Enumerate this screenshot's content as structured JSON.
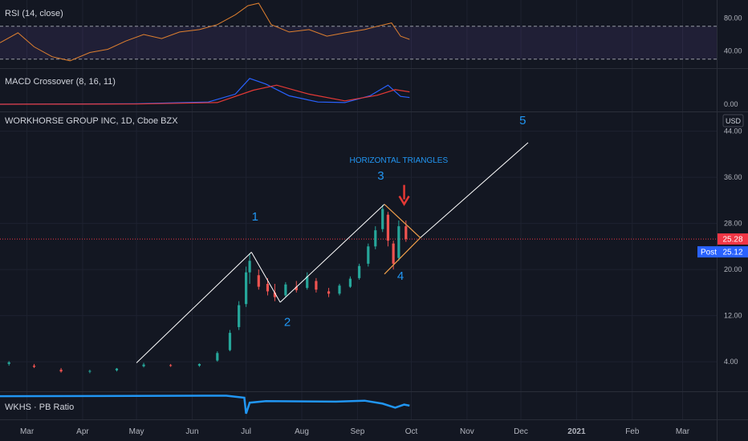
{
  "chart_data": {
    "type": "candlestick",
    "colors": {
      "background": "#131722",
      "grid": "#1e2230",
      "up": "#26a69a",
      "down": "#ef5350",
      "rsi_line": "#e0802f",
      "rsi_band": "#7e57c2",
      "macd_line": "#2962ff",
      "signal_line": "#e53935",
      "pb_line": "#2196f3",
      "wave_line": "#ffffff",
      "triangle": "#f0a04b",
      "wave_label": "#2196f3",
      "last_price": "#f23645",
      "post_price": "#2962ff",
      "arrow": "#e53935"
    },
    "x_axis": {
      "months": [
        "Mar",
        "Apr",
        "May",
        "Jun",
        "Jul",
        "Aug",
        "Sep",
        "Oct",
        "Nov",
        "Dec",
        "2021",
        "Feb",
        "Mar"
      ],
      "range": [
        "2020-02-15",
        "2021-03-20"
      ]
    },
    "rsi_panel": {
      "title": "RSI (14, close)",
      "ticks": [
        "80.00",
        "40.00"
      ],
      "ylim": [
        20,
        100
      ],
      "upper_band": 70,
      "lower_band": 30,
      "series": [
        {
          "date": "2020-02-15",
          "value": 50
        },
        {
          "date": "2020-02-25",
          "value": 62
        },
        {
          "date": "2020-03-05",
          "value": 45
        },
        {
          "date": "2020-03-15",
          "value": 33
        },
        {
          "date": "2020-03-25",
          "value": 28
        },
        {
          "date": "2020-04-05",
          "value": 38
        },
        {
          "date": "2020-04-15",
          "value": 42
        },
        {
          "date": "2020-04-25",
          "value": 52
        },
        {
          "date": "2020-05-05",
          "value": 60
        },
        {
          "date": "2020-05-15",
          "value": 55
        },
        {
          "date": "2020-05-25",
          "value": 63
        },
        {
          "date": "2020-06-05",
          "value": 66
        },
        {
          "date": "2020-06-15",
          "value": 72
        },
        {
          "date": "2020-06-25",
          "value": 84
        },
        {
          "date": "2020-07-02",
          "value": 95
        },
        {
          "date": "2020-07-08",
          "value": 98
        },
        {
          "date": "2020-07-15",
          "value": 72
        },
        {
          "date": "2020-07-25",
          "value": 63
        },
        {
          "date": "2020-08-05",
          "value": 66
        },
        {
          "date": "2020-08-15",
          "value": 58
        },
        {
          "date": "2020-08-25",
          "value": 62
        },
        {
          "date": "2020-09-05",
          "value": 66
        },
        {
          "date": "2020-09-12",
          "value": 70
        },
        {
          "date": "2020-09-20",
          "value": 74
        },
        {
          "date": "2020-09-25",
          "value": 58
        },
        {
          "date": "2020-09-30",
          "value": 54
        }
      ]
    },
    "macd_panel": {
      "title": "MACD Crossover (8, 16, 11)",
      "ticks": [
        "0.00"
      ],
      "ylim": [
        -1,
        6
      ],
      "macd": [
        {
          "date": "2020-02-15",
          "value": 0
        },
        {
          "date": "2020-05-01",
          "value": 0.1
        },
        {
          "date": "2020-06-10",
          "value": 0.4
        },
        {
          "date": "2020-06-25",
          "value": 1.8
        },
        {
          "date": "2020-07-03",
          "value": 4.6
        },
        {
          "date": "2020-07-12",
          "value": 3.6
        },
        {
          "date": "2020-07-25",
          "value": 1.5
        },
        {
          "date": "2020-08-10",
          "value": 0.4
        },
        {
          "date": "2020-08-25",
          "value": 0.3
        },
        {
          "date": "2020-09-08",
          "value": 1.5
        },
        {
          "date": "2020-09-18",
          "value": 3.4
        },
        {
          "date": "2020-09-25",
          "value": 1.4
        },
        {
          "date": "2020-09-30",
          "value": 1.2
        }
      ],
      "signal": [
        {
          "date": "2020-02-15",
          "value": 0
        },
        {
          "date": "2020-05-01",
          "value": 0.05
        },
        {
          "date": "2020-06-15",
          "value": 0.3
        },
        {
          "date": "2020-07-05",
          "value": 2.5
        },
        {
          "date": "2020-07-18",
          "value": 3.4
        },
        {
          "date": "2020-08-05",
          "value": 1.8
        },
        {
          "date": "2020-08-25",
          "value": 0.6
        },
        {
          "date": "2020-09-12",
          "value": 1.6
        },
        {
          "date": "2020-09-22",
          "value": 2.6
        },
        {
          "date": "2020-09-30",
          "value": 2.2
        }
      ]
    },
    "price_panel": {
      "title": "WORKHORSE GROUP INC, 1D, Cboe BZX",
      "currency": "USD",
      "ticks": [
        "44.00",
        "36.00",
        "28.00",
        "20.00",
        "12.00",
        "4.00"
      ],
      "ylim": [
        -1,
        47
      ],
      "last_price": "25.28",
      "post_label": "Post",
      "post_price": "25.12",
      "candles": [
        {
          "date": "2020-02-20",
          "o": 3.6,
          "h": 4.1,
          "l": 3.3,
          "c": 3.9
        },
        {
          "date": "2020-03-05",
          "o": 3.3,
          "h": 3.6,
          "l": 2.9,
          "c": 3.1
        },
        {
          "date": "2020-03-20",
          "o": 2.6,
          "h": 2.9,
          "l": 2.1,
          "c": 2.3
        },
        {
          "date": "2020-04-05",
          "o": 2.3,
          "h": 2.6,
          "l": 2.0,
          "c": 2.4
        },
        {
          "date": "2020-04-20",
          "o": 2.5,
          "h": 2.9,
          "l": 2.3,
          "c": 2.8
        },
        {
          "date": "2020-05-05",
          "o": 3.2,
          "h": 3.8,
          "l": 3.0,
          "c": 3.5
        },
        {
          "date": "2020-05-20",
          "o": 3.4,
          "h": 3.6,
          "l": 3.1,
          "c": 3.3
        },
        {
          "date": "2020-06-05",
          "o": 3.3,
          "h": 3.7,
          "l": 3.1,
          "c": 3.6
        },
        {
          "date": "2020-06-15",
          "o": 4.2,
          "h": 5.8,
          "l": 4.0,
          "c": 5.5
        },
        {
          "date": "2020-06-22",
          "o": 6.0,
          "h": 9.5,
          "l": 5.8,
          "c": 9.0
        },
        {
          "date": "2020-06-27",
          "o": 10.0,
          "h": 14.5,
          "l": 9.5,
          "c": 13.8
        },
        {
          "date": "2020-07-01",
          "o": 14.0,
          "h": 20.5,
          "l": 13.5,
          "c": 19.5
        },
        {
          "date": "2020-07-03",
          "o": 19.5,
          "h": 22.8,
          "l": 17.5,
          "c": 21.5
        },
        {
          "date": "2020-07-08",
          "o": 19.0,
          "h": 20.0,
          "l": 16.5,
          "c": 17.0
        },
        {
          "date": "2020-07-13",
          "o": 17.5,
          "h": 18.5,
          "l": 15.5,
          "c": 16.2
        },
        {
          "date": "2020-07-17",
          "o": 16.0,
          "h": 17.5,
          "l": 14.5,
          "c": 15.2
        },
        {
          "date": "2020-07-23",
          "o": 15.5,
          "h": 17.8,
          "l": 15.2,
          "c": 17.4
        },
        {
          "date": "2020-07-29",
          "o": 17.0,
          "h": 18.0,
          "l": 16.0,
          "c": 16.4
        },
        {
          "date": "2020-08-04",
          "o": 16.8,
          "h": 19.5,
          "l": 16.5,
          "c": 18.8
        },
        {
          "date": "2020-08-09",
          "o": 18.0,
          "h": 18.5,
          "l": 16.0,
          "c": 16.5
        },
        {
          "date": "2020-08-16",
          "o": 16.2,
          "h": 16.8,
          "l": 15.2,
          "c": 15.8
        },
        {
          "date": "2020-08-22",
          "o": 15.8,
          "h": 17.5,
          "l": 15.5,
          "c": 17.2
        },
        {
          "date": "2020-08-28",
          "o": 17.0,
          "h": 18.8,
          "l": 16.8,
          "c": 18.4
        },
        {
          "date": "2020-09-02",
          "o": 18.5,
          "h": 21.0,
          "l": 18.2,
          "c": 20.6
        },
        {
          "date": "2020-09-07",
          "o": 21.0,
          "h": 24.5,
          "l": 20.5,
          "c": 24.0
        },
        {
          "date": "2020-09-11",
          "o": 24.0,
          "h": 27.5,
          "l": 23.5,
          "c": 26.8
        },
        {
          "date": "2020-09-15",
          "o": 27.0,
          "h": 31.2,
          "l": 26.5,
          "c": 30.5
        },
        {
          "date": "2020-09-18",
          "o": 29.5,
          "h": 30.0,
          "l": 24.0,
          "c": 25.0
        },
        {
          "date": "2020-09-21",
          "o": 24.5,
          "h": 25.0,
          "l": 20.0,
          "c": 21.0
        },
        {
          "date": "2020-09-24",
          "o": 22.0,
          "h": 28.5,
          "l": 21.5,
          "c": 27.5
        },
        {
          "date": "2020-09-28",
          "o": 27.5,
          "h": 28.5,
          "l": 24.8,
          "c": 25.28
        }
      ]
    },
    "annotations": {
      "waves": [
        {
          "label": "1",
          "points": [
            [
              "2020-05-01",
              3.8
            ],
            [
              "2020-07-04",
              23.0
            ]
          ],
          "label_at": [
            "2020-07-06",
            28.5
          ]
        },
        {
          "label": "2",
          "points": [
            [
              "2020-07-04",
              23.0
            ],
            [
              "2020-07-20",
              14.3
            ]
          ],
          "label_at": [
            "2020-07-24",
            10.2
          ]
        },
        {
          "label": "3",
          "points": [
            [
              "2020-07-20",
              14.3
            ],
            [
              "2020-09-16",
              31.3
            ]
          ],
          "label_at": [
            "2020-09-14",
            35.6
          ]
        },
        {
          "label": "4",
          "points": [],
          "label_at": [
            "2020-09-25",
            18.2
          ]
        },
        {
          "label": "5",
          "points": [
            [
              "2020-10-06",
              25.5
            ],
            [
              "2020-12-05",
              42.0
            ]
          ],
          "label_at": [
            "2020-12-02",
            45.2
          ]
        }
      ],
      "triangle": [
        [
          "2020-09-16",
          31.3
        ],
        [
          "2020-10-06",
          25.5
        ],
        [
          "2020-09-16",
          19.2
        ]
      ],
      "text": "HORIZONTAL TRIANGLES",
      "text_at": [
        "2020-09-24",
        38.5
      ],
      "arrow_at": [
        "2020-09-27",
        33.0
      ]
    },
    "pb_panel": {
      "title": "WKHS · PB Ratio",
      "series": [
        {
          "date": "2020-02-15",
          "value": 9.5
        },
        {
          "date": "2020-06-20",
          "value": 9.6
        },
        {
          "date": "2020-06-30",
          "value": 9.2
        },
        {
          "date": "2020-07-01",
          "value": 6.0
        },
        {
          "date": "2020-07-03",
          "value": 8.2
        },
        {
          "date": "2020-07-12",
          "value": 8.5
        },
        {
          "date": "2020-08-20",
          "value": 8.4
        },
        {
          "date": "2020-09-05",
          "value": 8.6
        },
        {
          "date": "2020-09-15",
          "value": 8.0
        },
        {
          "date": "2020-09-22",
          "value": 7.2
        },
        {
          "date": "2020-09-27",
          "value": 7.8
        },
        {
          "date": "2020-09-30",
          "value": 7.6
        }
      ],
      "ylim": [
        5,
        10
      ]
    }
  }
}
